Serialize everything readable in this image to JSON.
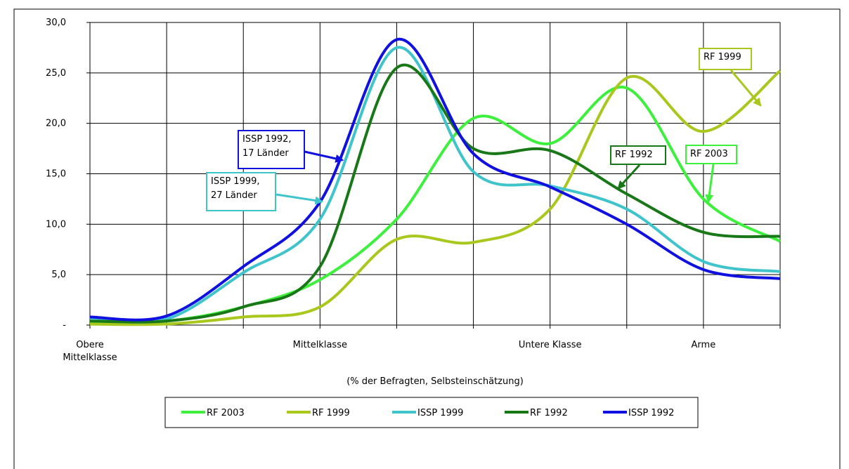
{
  "chart_data": {
    "type": "line",
    "x_label": "(% der Befragten, Selbsteinschätzung)",
    "categories": [
      "Obere Mittelklasse",
      null,
      null,
      "Mittelklasse",
      null,
      null,
      "Untere Klasse",
      null,
      "Arme",
      null
    ],
    "series": [
      {
        "name": "RF 2003",
        "color": "#3cf03c",
        "values": [
          0.3,
          0.4,
          1.8,
          4.5,
          10.5,
          20.5,
          18.0,
          23.5,
          12.5,
          8.3
        ]
      },
      {
        "name": "RF 1999",
        "color": "#a8c81e",
        "values": [
          0.1,
          0.1,
          0.8,
          1.8,
          8.5,
          8.2,
          11.5,
          24.5,
          19.2,
          25.2
        ]
      },
      {
        "name": "ISSP 1999",
        "color": "#40c4cc",
        "values": [
          0.7,
          0.6,
          5.2,
          10.5,
          27.5,
          15.2,
          13.8,
          11.5,
          6.3,
          5.3
        ]
      },
      {
        "name": "RF 1992",
        "color": "#187818",
        "values": [
          0.4,
          0.4,
          1.8,
          5.8,
          25.5,
          17.5,
          17.3,
          13.0,
          9.2,
          8.8
        ]
      },
      {
        "name": "ISSP 1992",
        "color": "#1010e0",
        "values": [
          0.8,
          0.9,
          5.8,
          12.2,
          28.3,
          17.0,
          13.7,
          10.0,
          5.5,
          4.6
        ]
      }
    ],
    "ylim": [
      0,
      30
    ],
    "yticks": [
      {
        "value": 0,
        "label": "-"
      },
      {
        "value": 5,
        "label": "5,0"
      },
      {
        "value": 10,
        "label": "10,0"
      },
      {
        "value": 15,
        "label": "15,0"
      },
      {
        "value": 20,
        "label": "20,0"
      },
      {
        "value": 25,
        "label": "25,0"
      },
      {
        "value": 30,
        "label": "30,0"
      }
    ],
    "grid": true,
    "legend": "bottom",
    "annotations": [
      {
        "lines": [
          "ISSP 1992,",
          "17 Länder"
        ],
        "series": "ISSP 1992"
      },
      {
        "lines": [
          "ISSP 1999,",
          "27 Länder"
        ],
        "series": "ISSP 1999"
      },
      {
        "lines": [
          "RF 1999"
        ],
        "series": "RF 1999"
      },
      {
        "lines": [
          "RF 1992"
        ],
        "series": "RF 1992"
      },
      {
        "lines": [
          "RF 2003"
        ],
        "series": "RF 2003"
      }
    ]
  }
}
